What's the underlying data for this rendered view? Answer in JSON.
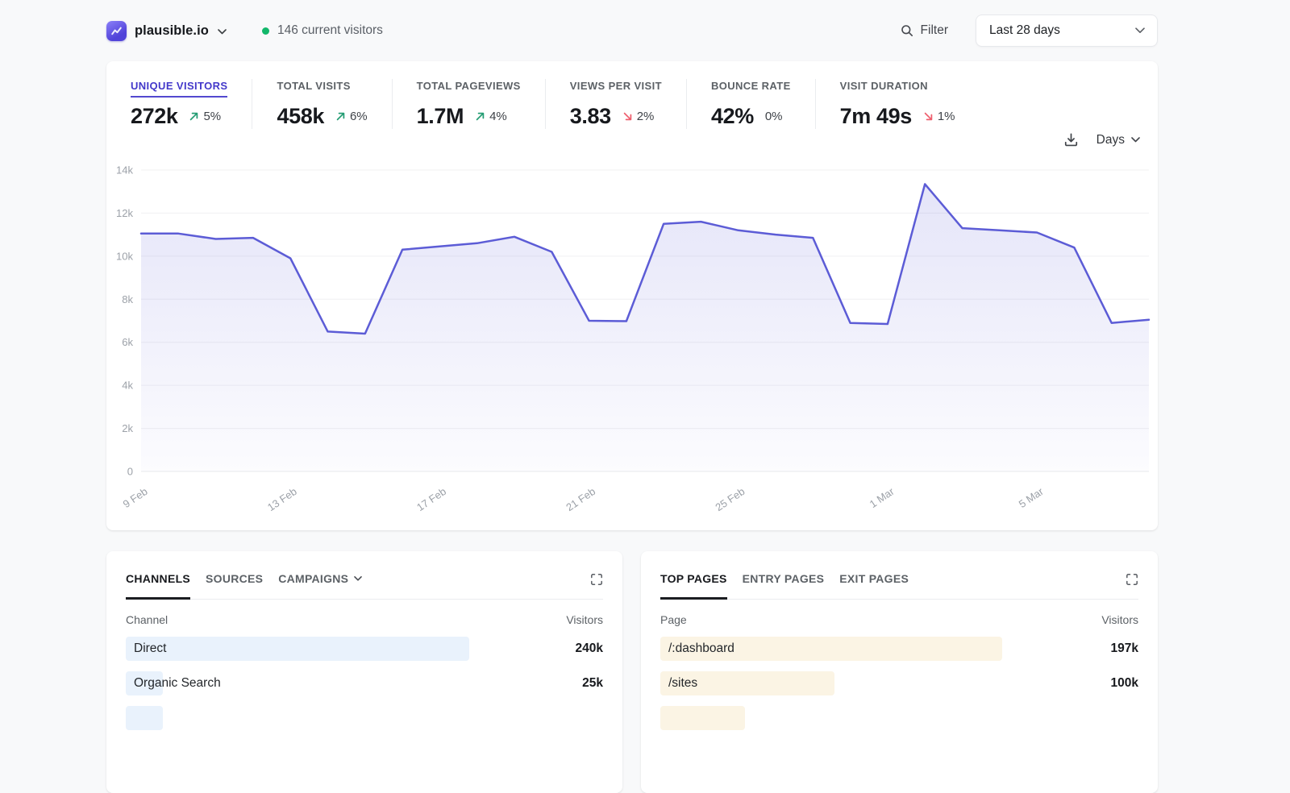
{
  "topbar": {
    "site_name": "plausible.io",
    "current_visitors": "146 current visitors",
    "filter_label": "Filter",
    "date_range": "Last 28 days"
  },
  "colors": {
    "accent_indigo": "#4338ca",
    "metric_underline": "#5349cf",
    "chart_line": "#5c5cd6",
    "chart_fill_top": "rgba(92,92,214,0.16)",
    "chart_fill_bottom": "rgba(92,92,214,0.02)",
    "up_green": "#259d74",
    "down_red": "#ee5f6e",
    "live_dot": "#12b76a",
    "bar_blue": "#e9f2fc",
    "bar_cream": "#fbf4e4",
    "grid_line": "#f0f0f2",
    "axis_text": "#9ca1a8"
  },
  "stats": [
    {
      "label": "UNIQUE VISITORS",
      "value": "272k",
      "delta": "5%",
      "direction": "up",
      "active": true
    },
    {
      "label": "TOTAL VISITS",
      "value": "458k",
      "delta": "6%",
      "direction": "up",
      "active": false
    },
    {
      "label": "TOTAL PAGEVIEWS",
      "value": "1.7M",
      "delta": "4%",
      "direction": "up",
      "active": false
    },
    {
      "label": "VIEWS PER VISIT",
      "value": "3.83",
      "delta": "2%",
      "direction": "down",
      "active": false
    },
    {
      "label": "BOUNCE RATE",
      "value": "42%",
      "delta": "0%",
      "direction": "flat",
      "active": false
    },
    {
      "label": "VISIT DURATION",
      "value": "7m 49s",
      "delta": "1%",
      "direction": "down",
      "active": false
    }
  ],
  "chart_controls": {
    "interval_label": "Days"
  },
  "chart_data": {
    "type": "area",
    "x": [
      "9 Feb",
      "10 Feb",
      "11 Feb",
      "12 Feb",
      "13 Feb",
      "14 Feb",
      "15 Feb",
      "16 Feb",
      "17 Feb",
      "18 Feb",
      "19 Feb",
      "20 Feb",
      "21 Feb",
      "22 Feb",
      "23 Feb",
      "24 Feb",
      "25 Feb",
      "26 Feb",
      "27 Feb",
      "28 Feb",
      "1 Mar",
      "2 Mar",
      "3 Mar",
      "4 Mar",
      "5 Mar",
      "6 Mar",
      "7 Mar",
      "8 Mar"
    ],
    "values": [
      11050,
      11050,
      10800,
      10850,
      9900,
      6500,
      6400,
      10300,
      10450,
      10600,
      10900,
      10200,
      7000,
      6980,
      11500,
      11600,
      11200,
      11000,
      10850,
      6900,
      6850,
      13350,
      11300,
      11200,
      11100,
      10400,
      6900,
      7050
    ],
    "x_tick_indices": [
      0,
      4,
      8,
      12,
      16,
      20,
      24
    ],
    "y_ticks": [
      {
        "value": 0,
        "label": "0"
      },
      {
        "value": 2000,
        "label": "2k"
      },
      {
        "value": 4000,
        "label": "4k"
      },
      {
        "value": 6000,
        "label": "6k"
      },
      {
        "value": 8000,
        "label": "8k"
      },
      {
        "value": 10000,
        "label": "10k"
      },
      {
        "value": 12000,
        "label": "12k"
      },
      {
        "value": 14000,
        "label": "14k"
      }
    ],
    "ylim": [
      0,
      14000
    ],
    "grid": true,
    "legend": false,
    "series_label": "Unique visitors"
  },
  "panels": [
    {
      "tabs": [
        {
          "label": "CHANNELS",
          "active": true,
          "has_chevron": false
        },
        {
          "label": "SOURCES",
          "active": false,
          "has_chevron": false
        },
        {
          "label": "CAMPAIGNS",
          "active": false,
          "has_chevron": true
        }
      ],
      "col_key": "Channel",
      "col_value": "Visitors",
      "bar_color": "#e9f2fc",
      "rows": [
        {
          "name": "Direct",
          "value": "240k",
          "bar_pct": 72
        },
        {
          "name": "Organic Search",
          "value": "25k",
          "bar_pct": 7.8
        }
      ],
      "partial_row": {
        "bar_pct": 7.8
      }
    },
    {
      "tabs": [
        {
          "label": "TOP PAGES",
          "active": true,
          "has_chevron": false
        },
        {
          "label": "ENTRY PAGES",
          "active": false,
          "has_chevron": false
        },
        {
          "label": "EXIT PAGES",
          "active": false,
          "has_chevron": false
        }
      ],
      "col_key": "Page",
      "col_value": "Visitors",
      "bar_color": "#fbf4e4",
      "rows": [
        {
          "name": "/:dashboard",
          "value": "197k",
          "bar_pct": 71.5
        },
        {
          "name": "/sites",
          "value": "100k",
          "bar_pct": 36.5
        }
      ],
      "partial_row": {
        "bar_pct": 17.7
      }
    }
  ]
}
